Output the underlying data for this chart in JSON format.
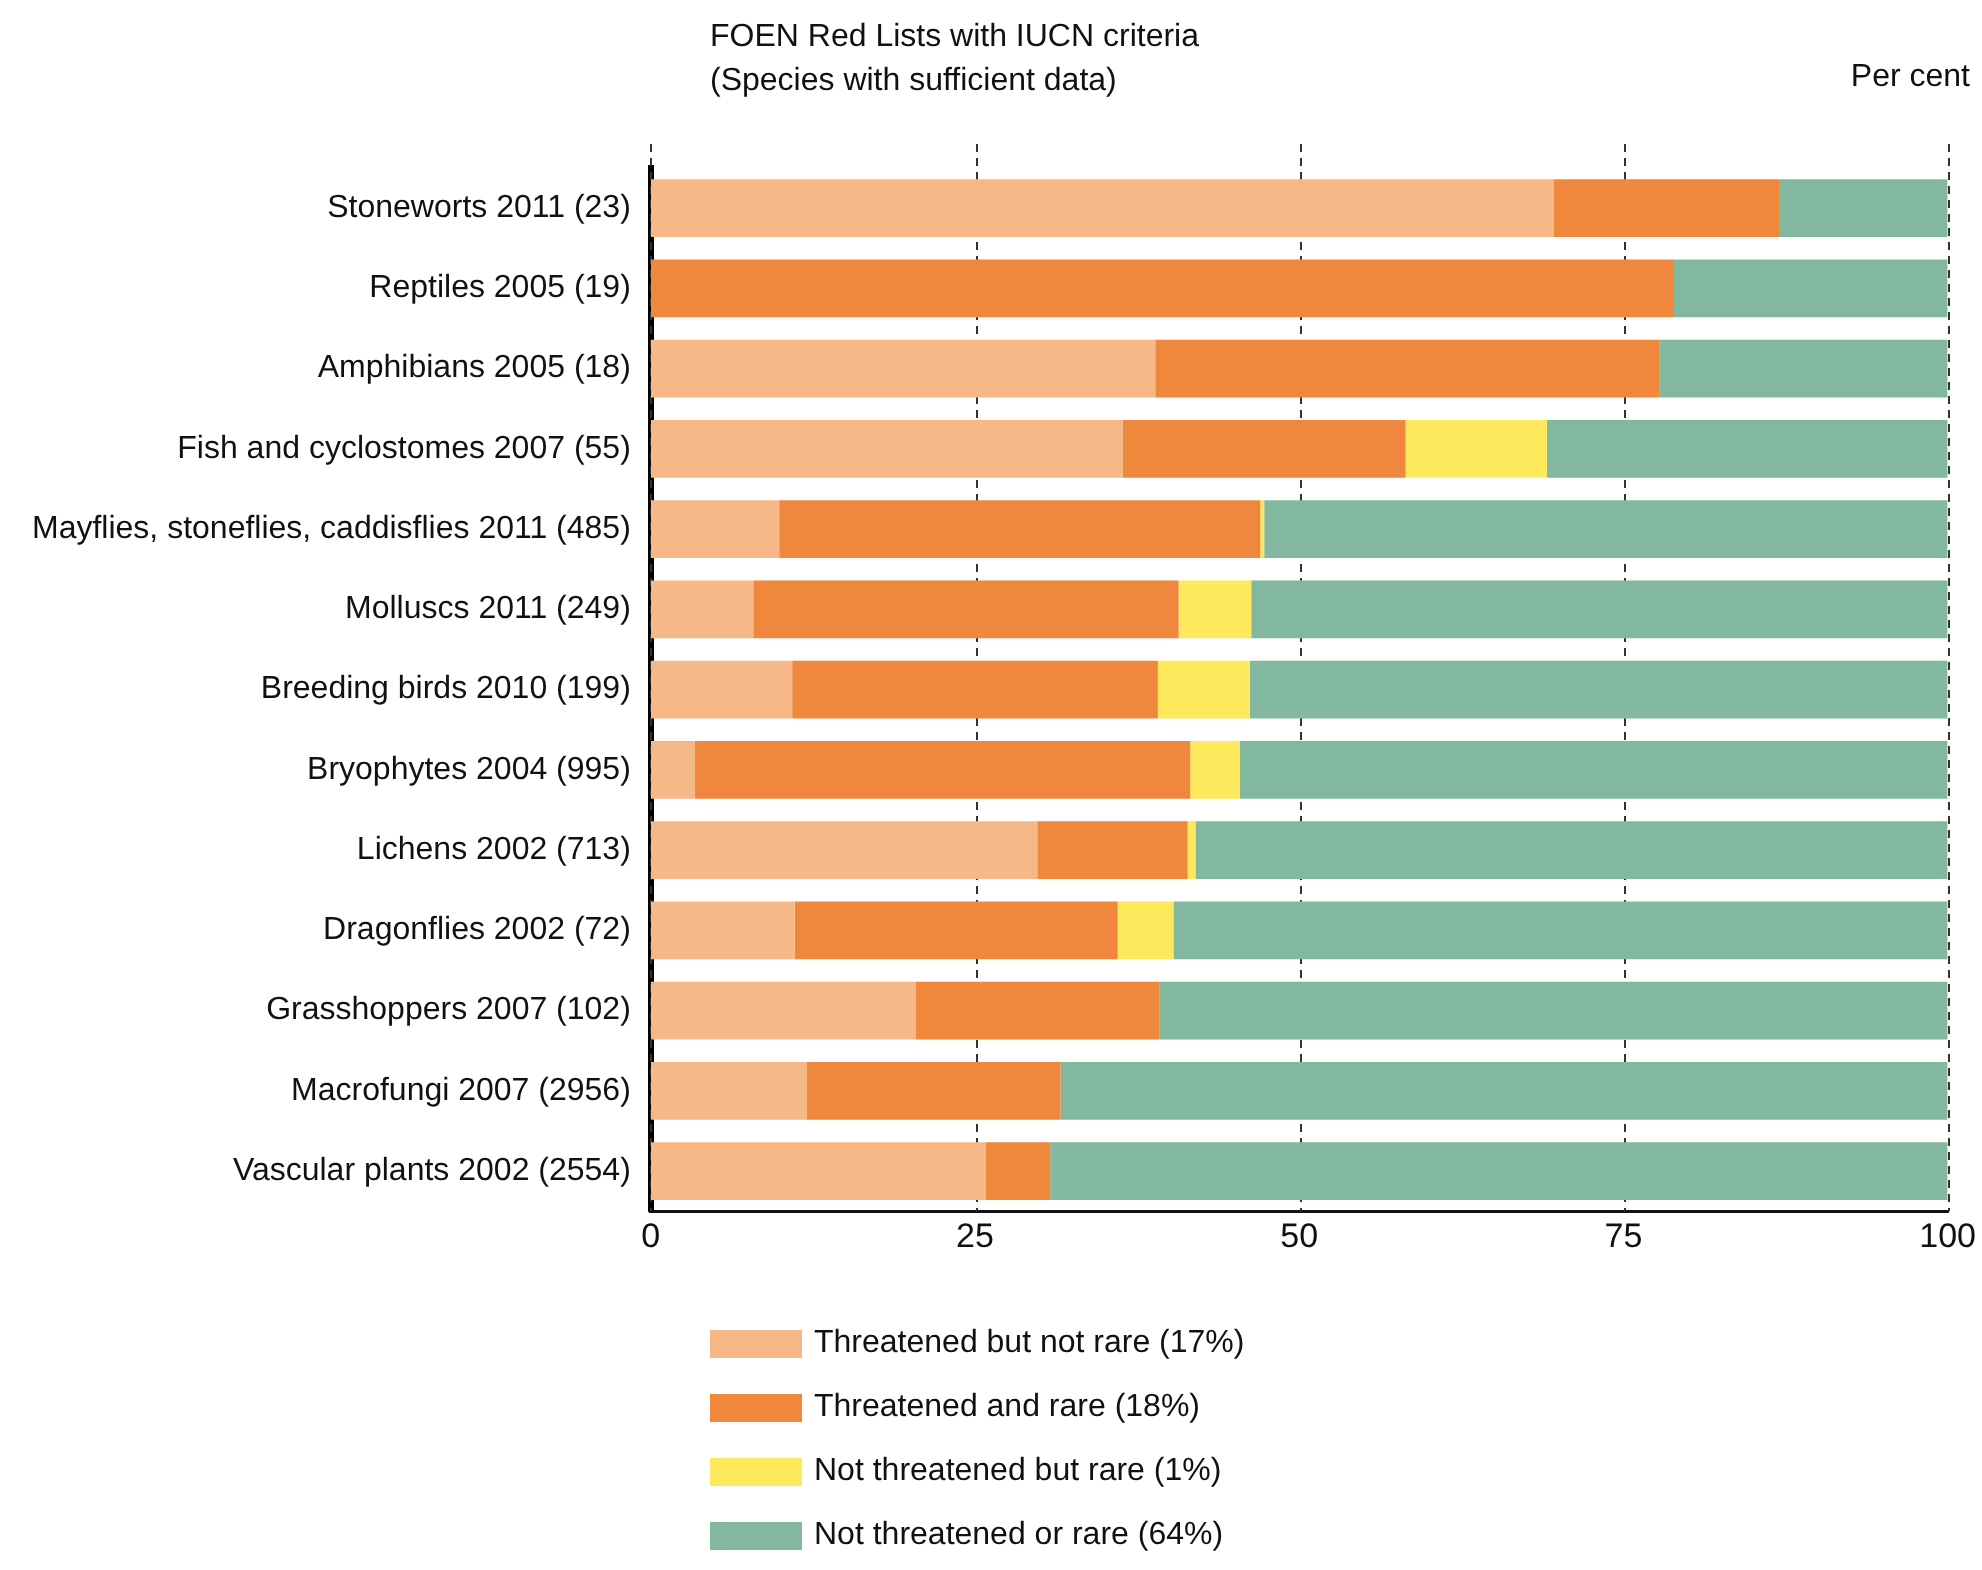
{
  "chart_data": {
    "type": "bar",
    "orientation": "horizontal",
    "stacked": true,
    "title": "FOEN Red Lists with IUCN criteria\n(Species with sufficient data)",
    "xlabel": "Per cent",
    "categories": [
      "Stoneworts 2011 (23)",
      "Reptiles 2005 (19)",
      "Amphibians 2005 (18)",
      "Fish and cyclostomes 2007 (55)",
      "Mayflies, stoneflies, caddisflies 2011 (485)",
      "Molluscs 2011 (249)",
      "Breeding birds 2010 (199)",
      "Bryophytes 2004 (995)",
      "Lichens 2002 (713)",
      "Dragonflies 2002 (72)",
      "Grasshoppers 2007 (102)",
      "Macrofungi 2007 (2956)",
      "Vascular plants 2002 (2554)"
    ],
    "series": [
      {
        "name": "Threatened but not rare (17%)",
        "color": "#f6b887",
        "values": [
          69.6,
          0,
          38.9,
          36.4,
          9.9,
          7.9,
          10.9,
          3.4,
          29.8,
          11.1,
          20.4,
          12.0,
          25.8
        ]
      },
      {
        "name": "Threatened and rare (18%)",
        "color": "#ef883d",
        "values": [
          17.4,
          78.9,
          38.9,
          21.8,
          37.1,
          32.8,
          28.2,
          38.2,
          11.6,
          24.9,
          18.8,
          19.6,
          5.0
        ]
      },
      {
        "name": "Not threatened but rare (1%)",
        "color": "#fee85c",
        "values": [
          0,
          0,
          0,
          10.9,
          0.3,
          5.6,
          7.1,
          3.8,
          0.6,
          4.3,
          0,
          0,
          0
        ]
      },
      {
        "name": "Not threatened or rare (64%)",
        "color": "#82b89f",
        "values": [
          13.0,
          21.1,
          22.2,
          30.9,
          52.7,
          53.7,
          53.8,
          54.6,
          58.0,
          59.7,
          60.8,
          68.4,
          69.2
        ]
      }
    ],
    "xlim": [
      0,
      100
    ],
    "xticks": [
      0,
      25,
      50,
      75,
      100
    ],
    "grid": "x",
    "legend": "bottom"
  }
}
